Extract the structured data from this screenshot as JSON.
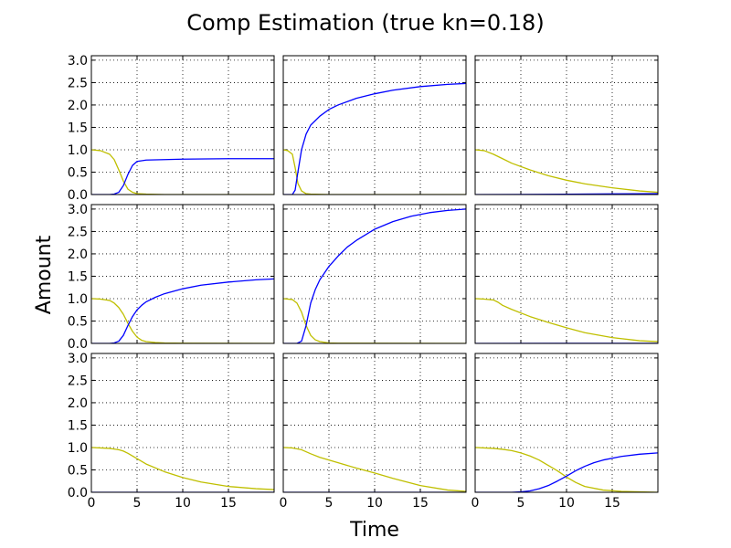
{
  "chart_data": {
    "type": "line",
    "title": "Comp Estimation (true kn=0.18)",
    "xlabel": "Time",
    "ylabel": "Amount",
    "layout": "3x3 grid, shared axes",
    "xlim": [
      0,
      20
    ],
    "ylim": [
      0,
      3.1
    ],
    "xticks": [
      0,
      5,
      10,
      15
    ],
    "xtick_labels": [
      "0",
      "5",
      "10",
      "15"
    ],
    "yticks": [
      0,
      0.5,
      1.0,
      1.5,
      2.0,
      2.5,
      3.0
    ],
    "ytick_labels": [
      "0.0",
      "0.5",
      "1.0",
      "1.5",
      "2.0",
      "2.5",
      "3.0"
    ],
    "grid": true,
    "grid_style": "dotted",
    "colors": {
      "yellow_series": "#bfbf00",
      "blue_series": "#0000ff"
    },
    "subplots": [
      {
        "row": 0,
        "col": 0,
        "series": [
          {
            "color": "#bfbf00",
            "x": [
              0,
              1,
              2,
              2.5,
              3,
              3.5,
              4,
              4.5,
              5,
              6,
              8,
              20
            ],
            "y": [
              1.0,
              0.98,
              0.9,
              0.78,
              0.55,
              0.3,
              0.12,
              0.05,
              0.02,
              0.01,
              0,
              0
            ]
          },
          {
            "color": "#0000ff",
            "x": [
              0,
              2,
              2.5,
              3,
              3.5,
              4,
              4.5,
              5,
              6,
              8,
              10,
              15,
              20
            ],
            "y": [
              0,
              0,
              0.01,
              0.05,
              0.2,
              0.45,
              0.65,
              0.74,
              0.77,
              0.78,
              0.79,
              0.8,
              0.8
            ]
          }
        ]
      },
      {
        "row": 0,
        "col": 1,
        "series": [
          {
            "color": "#bfbf00",
            "x": [
              0,
              0.5,
              1,
              1.3,
              1.6,
              2,
              2.5,
              3,
              5,
              20
            ],
            "y": [
              1.0,
              0.98,
              0.9,
              0.6,
              0.25,
              0.08,
              0.02,
              0.01,
              0,
              0
            ]
          },
          {
            "color": "#0000ff",
            "x": [
              0,
              1,
              1.3,
              1.6,
              2,
              2.5,
              3,
              4,
              5,
              6,
              8,
              10,
              12,
              15,
              18,
              20
            ],
            "y": [
              0,
              0,
              0.1,
              0.5,
              1.0,
              1.35,
              1.55,
              1.75,
              1.9,
              2.0,
              2.15,
              2.25,
              2.33,
              2.41,
              2.46,
              2.48
            ]
          }
        ]
      },
      {
        "row": 0,
        "col": 2,
        "series": [
          {
            "color": "#bfbf00",
            "x": [
              0,
              1,
              2,
              3,
              4,
              6,
              8,
              10,
              12,
              15,
              18,
              20
            ],
            "y": [
              1.0,
              0.98,
              0.9,
              0.8,
              0.7,
              0.55,
              0.42,
              0.32,
              0.24,
              0.15,
              0.08,
              0.05
            ]
          },
          {
            "color": "#0000ff",
            "x": [
              0,
              5,
              10,
              15,
              20
            ],
            "y": [
              0,
              0.003,
              0.008,
              0.015,
              0.02
            ]
          }
        ]
      },
      {
        "row": 1,
        "col": 0,
        "series": [
          {
            "color": "#bfbf00",
            "x": [
              0,
              1,
              2,
              2.5,
              3,
              3.5,
              4,
              4.5,
              5,
              5.5,
              6,
              7,
              8,
              10,
              20
            ],
            "y": [
              1.0,
              0.99,
              0.96,
              0.9,
              0.8,
              0.65,
              0.45,
              0.27,
              0.14,
              0.07,
              0.04,
              0.02,
              0.01,
              0.005,
              0
            ]
          },
          {
            "color": "#0000ff",
            "x": [
              0,
              2,
              2.5,
              3,
              3.5,
              4,
              4.5,
              5,
              5.5,
              6,
              7,
              8,
              10,
              12,
              15,
              18,
              20
            ],
            "y": [
              0,
              0,
              0.01,
              0.05,
              0.18,
              0.4,
              0.6,
              0.75,
              0.85,
              0.93,
              1.03,
              1.11,
              1.22,
              1.3,
              1.37,
              1.42,
              1.44
            ]
          }
        ]
      },
      {
        "row": 1,
        "col": 1,
        "series": [
          {
            "color": "#bfbf00",
            "x": [
              0,
              1,
              1.5,
              2,
              2.5,
              3,
              3.5,
              4,
              5,
              6,
              20
            ],
            "y": [
              1.0,
              0.98,
              0.9,
              0.7,
              0.4,
              0.18,
              0.08,
              0.04,
              0.01,
              0.005,
              0
            ]
          },
          {
            "color": "#0000ff",
            "x": [
              0,
              1.5,
              2,
              2.5,
              3,
              3.5,
              4,
              5,
              6,
              7,
              8,
              10,
              12,
              14,
              16,
              18,
              20
            ],
            "y": [
              0,
              0,
              0.05,
              0.4,
              0.9,
              1.2,
              1.42,
              1.72,
              1.95,
              2.15,
              2.3,
              2.55,
              2.72,
              2.84,
              2.92,
              2.97,
              3.0
            ]
          }
        ]
      },
      {
        "row": 1,
        "col": 2,
        "series": [
          {
            "color": "#bfbf00",
            "x": [
              0,
              1,
              2,
              2.5,
              3,
              4,
              6,
              8,
              10,
              12,
              15,
              18,
              20
            ],
            "y": [
              1.0,
              0.99,
              0.97,
              0.92,
              0.85,
              0.76,
              0.6,
              0.47,
              0.35,
              0.24,
              0.13,
              0.06,
              0.04
            ]
          },
          {
            "color": "#0000ff",
            "x": [
              0,
              10,
              20
            ],
            "y": [
              0,
              0.001,
              0.002
            ]
          }
        ]
      },
      {
        "row": 2,
        "col": 0,
        "series": [
          {
            "color": "#bfbf00",
            "x": [
              0,
              1,
              2,
              3,
              3.5,
              4,
              5,
              6,
              8,
              10,
              12,
              15,
              18,
              20
            ],
            "y": [
              1.0,
              0.99,
              0.98,
              0.95,
              0.92,
              0.87,
              0.75,
              0.63,
              0.46,
              0.33,
              0.23,
              0.13,
              0.08,
              0.06
            ]
          },
          {
            "color": "#0000ff",
            "x": [
              0,
              20
            ],
            "y": [
              0,
              0
            ]
          }
        ]
      },
      {
        "row": 2,
        "col": 1,
        "series": [
          {
            "color": "#bfbf00",
            "x": [
              0,
              1,
              2,
              3,
              4,
              6,
              8,
              10,
              12,
              15,
              18,
              20
            ],
            "y": [
              1.0,
              0.99,
              0.95,
              0.86,
              0.78,
              0.66,
              0.54,
              0.43,
              0.31,
              0.15,
              0.05,
              0.02
            ]
          },
          {
            "color": "#0000ff",
            "x": [
              0,
              20
            ],
            "y": [
              0,
              0
            ]
          }
        ]
      },
      {
        "row": 2,
        "col": 2,
        "series": [
          {
            "color": "#bfbf00",
            "x": [
              0,
              1,
              2,
              3,
              4,
              5,
              6,
              7,
              8,
              9,
              10,
              11,
              12,
              14,
              16,
              18,
              20
            ],
            "y": [
              1.0,
              0.99,
              0.98,
              0.96,
              0.93,
              0.88,
              0.81,
              0.72,
              0.6,
              0.48,
              0.34,
              0.22,
              0.13,
              0.05,
              0.02,
              0.01,
              0
            ]
          },
          {
            "color": "#0000ff",
            "x": [
              0,
              4,
              5,
              6,
              7,
              8,
              9,
              10,
              11,
              12,
              13,
              14,
              16,
              18,
              20
            ],
            "y": [
              0,
              0,
              0.01,
              0.03,
              0.08,
              0.15,
              0.25,
              0.36,
              0.48,
              0.58,
              0.66,
              0.72,
              0.8,
              0.85,
              0.88
            ]
          }
        ]
      }
    ]
  }
}
